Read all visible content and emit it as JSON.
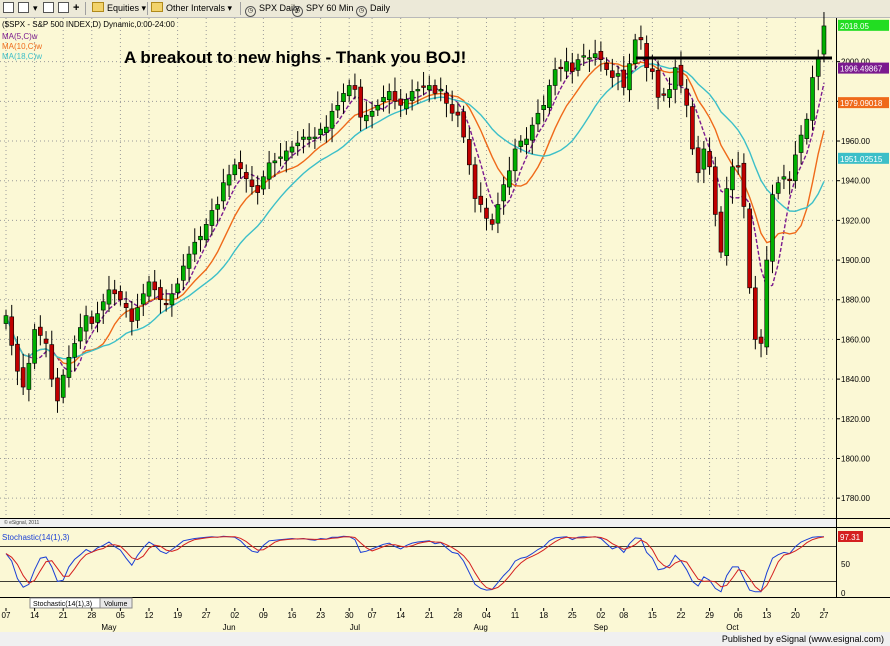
{
  "toolbar": {
    "items": [
      "Equities",
      "Other Intervals",
      "SPX Daily",
      "SPY 60 Min",
      "Daily"
    ]
  },
  "chart_header": {
    "symbol_line": "($SPX - S&P 500 INDEX,D) Dynamic,0:00-24:00",
    "ma5_label": "MA(5,C)w",
    "ma10_label": "MA(10,C)w",
    "ma18_label": "MA(18,C)w",
    "annotation": "A breakout to new highs - Thank you BOJ!",
    "copyright": "© eSignal, 2011"
  },
  "stochastic": {
    "label": "Stochastic(14(1),3)",
    "value_label": "97.31",
    "tab1": "Stochastic(14(1),3)",
    "tab2": "Volume"
  },
  "footer": "Published by eSignal (www.esignal.com)",
  "colors": {
    "background": "#fbf8d5",
    "up": "#00b000",
    "down": "#c00000",
    "ma5": "#7b1a8f",
    "ma10": "#ef6a1a",
    "ma18": "#3cbfc8",
    "stoch_k": "#1a3fd6",
    "stoch_d": "#d42020"
  },
  "chart_data": {
    "type": "candlestick",
    "ylim": [
      1770,
      2022
    ],
    "yticks": [
      1780,
      1800,
      1820,
      1840,
      1860,
      1880,
      1900,
      1920,
      1940,
      1960,
      1980,
      2000
    ],
    "price_labels": [
      {
        "value": 2018.05,
        "text": "2018.05",
        "color": "#22dd22"
      },
      {
        "value": 1996.49867,
        "text": "1996.49867",
        "color": "#7b1a8f"
      },
      {
        "value": 1979.09018,
        "text": "1979.09018",
        "color": "#ef6a1a"
      },
      {
        "value": 1951.02515,
        "text": "1951.02515",
        "color": "#3cbfc8"
      }
    ],
    "date_ticks": [
      "07",
      "14",
      "21",
      "28",
      "05",
      "12",
      "19",
      "27",
      "02",
      "09",
      "16",
      "23",
      "30",
      "07",
      "14",
      "21",
      "28",
      "04",
      "11",
      "18",
      "25",
      "02",
      "08",
      "15",
      "22",
      "29",
      "06",
      "13",
      "20",
      "27"
    ],
    "date_tick_index": [
      0,
      5,
      10,
      15,
      20,
      25,
      30,
      35,
      40,
      45,
      50,
      55,
      60,
      64,
      69,
      74,
      79,
      84,
      89,
      94,
      99,
      104,
      108,
      113,
      118,
      123,
      128,
      133,
      138,
      143
    ],
    "months": [
      "May",
      "Jun",
      "Jul",
      "Aug",
      "Sep",
      "Oct"
    ],
    "month_index": [
      18,
      39,
      61,
      83,
      104,
      127
    ],
    "closes": [
      1872,
      1857,
      1844,
      1836,
      1848,
      1865,
      1862,
      1858,
      1840,
      1829,
      1842,
      1851,
      1858,
      1866,
      1872,
      1868,
      1873,
      1879,
      1885,
      1883,
      1880,
      1876,
      1869,
      1876,
      1883,
      1889,
      1885,
      1880,
      1878,
      1883,
      1888,
      1897,
      1903,
      1909,
      1912,
      1918,
      1925,
      1928,
      1939,
      1943,
      1948,
      1946,
      1941,
      1937,
      1934,
      1942,
      1949,
      1950,
      1952,
      1955,
      1957,
      1959,
      1962,
      1962,
      1962,
      1966,
      1967,
      1975,
      1978,
      1984,
      1988,
      1986,
      1972,
      1973,
      1975,
      1978,
      1982,
      1985,
      1980,
      1978,
      1981,
      1985,
      1986,
      1987,
      1988,
      1984,
      1986,
      1979,
      1974,
      1973,
      1962,
      1948,
      1931,
      1928,
      1921,
      1918,
      1928,
      1938,
      1945,
      1956,
      1960,
      1961,
      1968,
      1974,
      1978,
      1988,
      1996,
      1997,
      2000,
      1995,
      2001,
      2003,
      2002,
      2004,
      2001,
      1996,
      1992,
      1994,
      1987,
      1999,
      2011,
      2011,
      1997,
      1995,
      1982,
      1983,
      1986,
      1997,
      1988,
      1978,
      1956,
      1944,
      1956,
      1947,
      1923,
      1904,
      1936,
      1947,
      1947,
      1927,
      1886,
      1860,
      1858,
      1900,
      1933,
      1939,
      1942,
      1940,
      1953,
      1963,
      1971,
      1992,
      2002,
      2018
    ],
    "stoch_k": [
      68,
      55,
      25,
      10,
      15,
      40,
      60,
      62,
      45,
      20,
      22,
      45,
      58,
      66,
      75,
      70,
      78,
      82,
      88,
      80,
      74,
      60,
      48,
      65,
      78,
      88,
      82,
      72,
      68,
      75,
      82,
      90,
      92,
      94,
      95,
      96,
      97,
      96,
      98,
      97,
      96,
      90,
      80,
      72,
      70,
      82,
      90,
      91,
      92,
      93,
      94,
      93,
      94,
      92,
      91,
      94,
      93,
      96,
      96,
      98,
      97,
      92,
      70,
      72,
      76,
      80,
      84,
      86,
      80,
      76,
      82,
      86,
      88,
      89,
      90,
      85,
      87,
      78,
      70,
      68,
      55,
      35,
      15,
      8,
      5,
      6,
      18,
      30,
      40,
      55,
      60,
      62,
      68,
      75,
      80,
      90,
      95,
      96,
      97,
      92,
      96,
      97,
      96,
      97,
      94,
      85,
      76,
      80,
      70,
      85,
      95,
      94,
      70,
      60,
      40,
      42,
      48,
      65,
      55,
      40,
      20,
      12,
      28,
      22,
      8,
      2,
      30,
      45,
      45,
      25,
      5,
      2,
      2,
      35,
      60,
      66,
      70,
      68,
      80,
      88,
      92,
      96,
      97,
      97
    ]
  }
}
